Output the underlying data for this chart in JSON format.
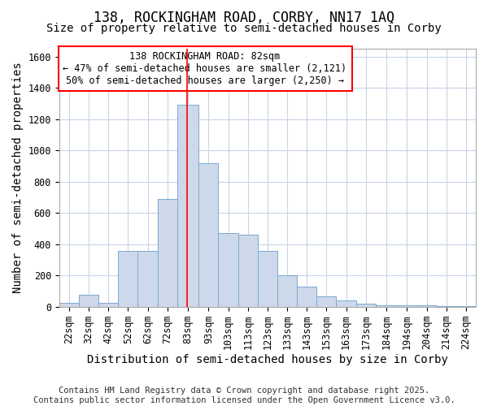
{
  "title_line1": "138, ROCKINGHAM ROAD, CORBY, NN17 1AQ",
  "title_line2": "Size of property relative to semi-detached houses in Corby",
  "xlabel": "Distribution of semi-detached houses by size in Corby",
  "ylabel": "Number of semi-detached properties",
  "bar_color": "#cdd9ea",
  "bar_edge_color": "#7aa8d0",
  "bg_color": "#ffffff",
  "grid_color": "#c8d4e8",
  "annotation_text": "138 ROCKINGHAM ROAD: 82sqm\n← 47% of semi-detached houses are smaller (2,121)\n50% of semi-detached houses are larger (2,250) →",
  "annotation_box_color": "white",
  "annotation_box_edge_color": "red",
  "vline_x": 82,
  "vline_color": "red",
  "bin_edges": [
    17,
    27,
    37,
    47,
    57,
    67,
    77,
    88,
    98,
    108,
    118,
    128,
    138,
    148,
    158,
    168,
    178,
    189,
    199,
    209,
    219,
    229
  ],
  "bin_labels": [
    "22sqm",
    "32sqm",
    "42sqm",
    "52sqm",
    "62sqm",
    "72sqm",
    "83sqm",
    "93sqm",
    "103sqm",
    "113sqm",
    "123sqm",
    "133sqm",
    "143sqm",
    "153sqm",
    "163sqm",
    "173sqm",
    "184sqm",
    "194sqm",
    "204sqm",
    "214sqm",
    "224sqm"
  ],
  "counts": [
    25,
    80,
    25,
    360,
    360,
    690,
    1290,
    920,
    470,
    460,
    360,
    200,
    130,
    65,
    40,
    20,
    10,
    10,
    10,
    5,
    5
  ],
  "ylim": [
    0,
    1650
  ],
  "yticks": [
    0,
    200,
    400,
    600,
    800,
    1000,
    1200,
    1400,
    1600
  ],
  "footer_text": "Contains HM Land Registry data © Crown copyright and database right 2025.\nContains public sector information licensed under the Open Government Licence v3.0.",
  "title_fontsize": 12,
  "subtitle_fontsize": 10,
  "axis_label_fontsize": 10,
  "tick_fontsize": 8.5,
  "annotation_fontsize": 8.5,
  "footer_fontsize": 7.5
}
